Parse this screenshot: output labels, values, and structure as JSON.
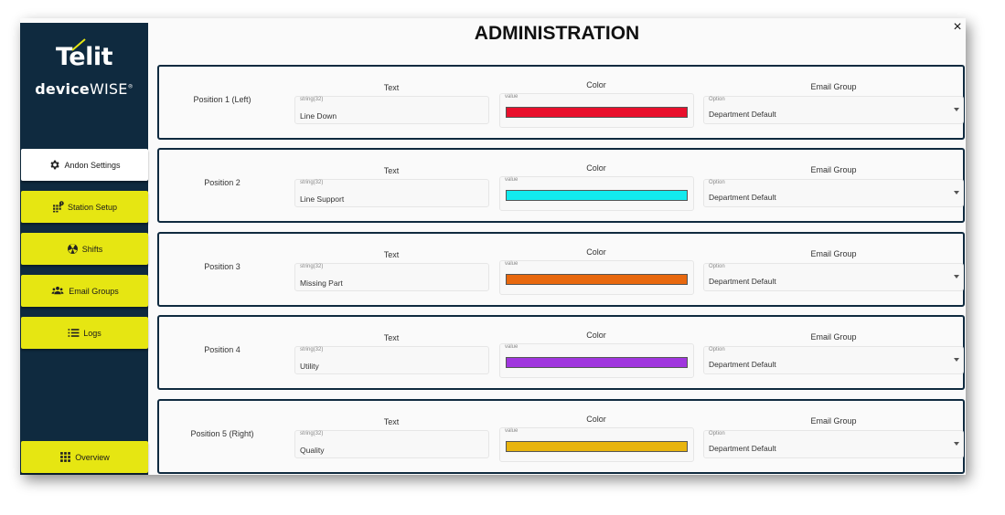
{
  "window": {
    "title": "ADMINISTRATION",
    "close_label": "×"
  },
  "brand": {
    "logo_text": "Telit",
    "product_bold": "device",
    "product_light": "WISE",
    "trademark": "®",
    "mark_color": "#e6e612"
  },
  "sidebar": {
    "items": [
      {
        "label": "Andon Settings",
        "icon": "gear-icon",
        "active": true
      },
      {
        "label": "Station Setup",
        "icon": "grid-alert-icon",
        "active": false
      },
      {
        "label": "Shifts",
        "icon": "radiation-icon",
        "active": false
      },
      {
        "label": "Email Groups",
        "icon": "people-icon",
        "active": false
      },
      {
        "label": "Logs",
        "icon": "list-icon",
        "active": false
      }
    ],
    "overview": {
      "label": "Overview",
      "icon": "grid-icon"
    }
  },
  "columns": {
    "text": "Text",
    "color": "Color",
    "email": "Email Group"
  },
  "positions": [
    {
      "label": "Position 1 (Left)",
      "text_caption": "string(32)",
      "text_value": "Line Down",
      "color_caption": "value",
      "color": "#e8102c",
      "email_caption": "Option",
      "email_value": "Department Default"
    },
    {
      "label": "Position 2",
      "text_caption": "string(32)",
      "text_value": "Line Support",
      "color_caption": "value",
      "color": "#12eaee",
      "email_caption": "Option",
      "email_value": "Department Default"
    },
    {
      "label": "Position 3",
      "text_caption": "string(32)",
      "text_value": "Missing Part",
      "color_caption": "value",
      "color": "#e8680e",
      "email_caption": "Option",
      "email_value": "Department Default"
    },
    {
      "label": "Position 4",
      "text_caption": "string(32)",
      "text_value": "Utility",
      "color_caption": "value",
      "color": "#a036de",
      "email_caption": "Option",
      "email_value": "Department Default"
    },
    {
      "label": "Position 5 (Right)",
      "text_caption": "string(32)",
      "text_value": "Quality",
      "color_caption": "value",
      "color": "#e8b40e",
      "email_caption": "Option",
      "email_value": "Department Default"
    }
  ]
}
